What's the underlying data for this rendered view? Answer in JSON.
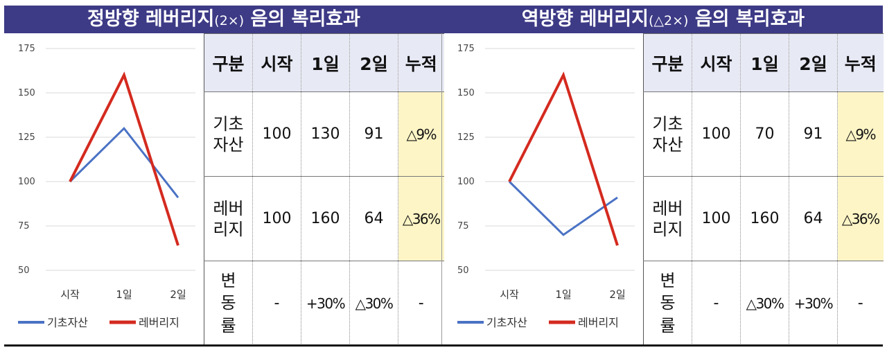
{
  "left": {
    "title": {
      "main_a": "정방향 레버리지",
      "sub": "(2×)",
      "main_b": " 음의 복리효과"
    },
    "table": {
      "headers": [
        "구분",
        "시작",
        "1일",
        "2일",
        "누적"
      ],
      "row1": {
        "label_l1": "기초",
        "label_l2": "자산",
        "values": [
          "100",
          "130",
          "91"
        ],
        "cum": "△9%"
      },
      "row2": {
        "label_l1": "레버",
        "label_l2": "리지",
        "values": [
          "100",
          "160",
          "64"
        ],
        "cum": "△36%"
      },
      "row3": {
        "label_l1": "변",
        "label_l2": "동",
        "label_l3": "률",
        "values": [
          "-",
          "+30%",
          "△30%"
        ],
        "cum": "-"
      }
    }
  },
  "right": {
    "title": {
      "main_a": "역방향 레버리지",
      "sub": "(△2×)",
      "main_b": " 음의 복리효과"
    },
    "table": {
      "headers": [
        "구분",
        "시작",
        "1일",
        "2일",
        "누적"
      ],
      "row1": {
        "label_l1": "기초",
        "label_l2": "자산",
        "values": [
          "100",
          "70",
          "91"
        ],
        "cum": "△9%"
      },
      "row2": {
        "label_l1": "레버",
        "label_l2": "리지",
        "values": [
          "100",
          "160",
          "64"
        ],
        "cum": "△36%"
      },
      "row3": {
        "label_l1": "변",
        "label_l2": "동",
        "label_l3": "률",
        "values": [
          "-",
          "△30%",
          "+30%"
        ],
        "cum": "-"
      }
    }
  },
  "chart_data": [
    {
      "type": "line",
      "categories": [
        "시작",
        "1일",
        "2일"
      ],
      "yticks": [
        50,
        75,
        100,
        125,
        150,
        175
      ],
      "ylim": [
        50,
        175
      ],
      "grid": true,
      "legend_position": "bottom",
      "series": [
        {
          "name": "기초자산",
          "values": [
            100,
            130,
            91
          ],
          "color": "#4a72c4"
        },
        {
          "name": "레버리지",
          "values": [
            100,
            160,
            64
          ],
          "color": "#d42a1f"
        }
      ]
    },
    {
      "type": "line",
      "categories": [
        "시작",
        "1일",
        "2일"
      ],
      "yticks": [
        50,
        75,
        100,
        125,
        150,
        175
      ],
      "ylim": [
        50,
        175
      ],
      "grid": true,
      "legend_position": "bottom",
      "series": [
        {
          "name": "기초자산",
          "values": [
            100,
            70,
            91
          ],
          "color": "#4a72c4"
        },
        {
          "name": "레버리지",
          "values": [
            100,
            160,
            64
          ],
          "color": "#d42a1f"
        }
      ]
    }
  ]
}
